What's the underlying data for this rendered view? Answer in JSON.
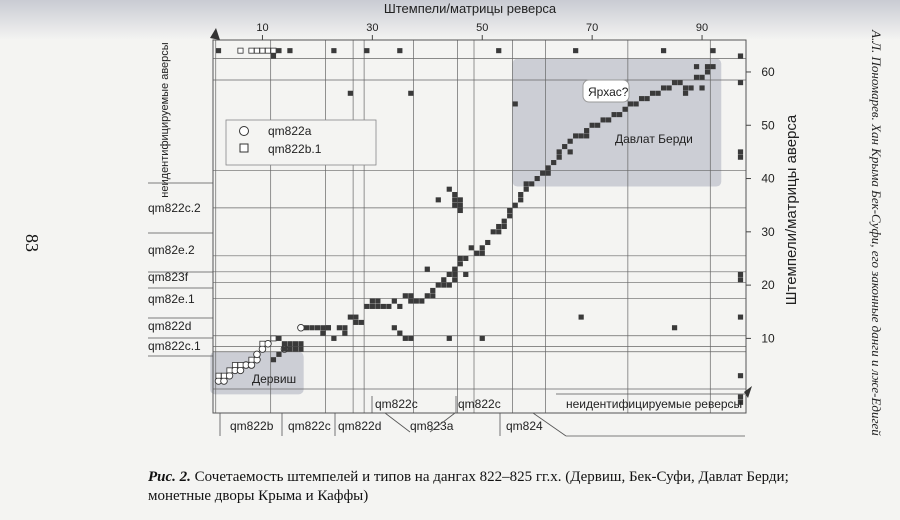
{
  "page_number": "83",
  "running_head": "А.Л. Пономарев. Хан Крыма Бек-Суфи, его законные данги и лже-Едигей",
  "caption": {
    "label": "Рис. 2.",
    "text": "Сочетаемость штемпелей и типов на дангах 822–825 гг.х. (Дервиш, Бек-Суфи, Давлат Берди; монетные дворы Крыма и Каффы)"
  },
  "chart_data": {
    "type": "scatter",
    "title": "Штемпели/матрицы реверса",
    "ylabel": "Штемпели/матрицы аверса",
    "x_ticks": [
      10,
      30,
      50,
      70,
      90
    ],
    "y_ticks": [
      10,
      20,
      30,
      40,
      50,
      60
    ],
    "xlim": [
      1,
      98
    ],
    "ylim": [
      -4,
      66
    ],
    "legend": {
      "placement": "top-left",
      "entries": [
        {
          "marker": "circle",
          "label": "qm822a"
        },
        {
          "marker": "square",
          "label": "qm822b.1"
        }
      ]
    },
    "regions": [
      {
        "label": "Дервиш",
        "x0": 0.5,
        "x1": 17.5,
        "y0": -0.5,
        "y1": 7.5
      },
      {
        "label": "Давлат Берди",
        "x0": 55.5,
        "x1": 93.5,
        "y0": 38.5,
        "y1": 62.5
      }
    ],
    "annotations": [
      {
        "label": "Ярхас?",
        "x": 71,
        "y": 51
      }
    ],
    "y_type_labels": [
      "неидентифицируемые аверсы",
      "qm822c.2",
      "qm82e.2",
      "qm823f",
      "qm82e.1",
      "qm822d",
      "qm822c.1"
    ],
    "x_type_labels_upper": [
      "qm822c",
      "qm822c"
    ],
    "x_type_labels_lower": [
      "qm822b",
      "qm822c",
      "qm822d",
      "qm823a",
      "qm824",
      "неидентифицируемые реверсы"
    ],
    "y_dividers": [
      0.5,
      7.5,
      8.5,
      10.5,
      17.5,
      20.5,
      22.5,
      25.5,
      34.5,
      41.5,
      58.5,
      62.5
    ],
    "x_dividers": [
      1.5,
      11.5,
      21.5,
      26.5,
      28.5,
      37.5,
      45.5,
      48.5,
      55.5,
      61.5,
      76.5,
      91.5
    ],
    "series": [
      {
        "name": "qm822a",
        "marker": "circle",
        "points": [
          [
            2,
            2
          ],
          [
            3,
            2
          ],
          [
            4,
            3
          ],
          [
            5,
            4
          ],
          [
            6,
            4
          ],
          [
            7,
            5
          ],
          [
            8,
            5
          ],
          [
            9,
            6
          ],
          [
            9,
            7
          ],
          [
            10,
            8
          ],
          [
            11,
            9
          ],
          [
            14,
            8
          ],
          [
            17,
            12
          ]
        ]
      },
      {
        "name": "qm822b.1",
        "marker": "open-square",
        "points": [
          [
            6,
            64
          ],
          [
            8,
            64
          ],
          [
            9,
            64
          ],
          [
            10,
            64
          ],
          [
            11,
            64
          ],
          [
            12,
            64
          ],
          [
            2,
            3
          ],
          [
            3,
            3
          ],
          [
            4,
            4
          ],
          [
            5,
            5
          ],
          [
            6,
            5
          ],
          [
            8,
            6
          ],
          [
            10,
            9
          ],
          [
            12,
            10
          ]
        ]
      },
      {
        "name": "",
        "marker": "filled-square",
        "points": [
          [
            2,
            64
          ],
          [
            12,
            63
          ],
          [
            13,
            64
          ],
          [
            15,
            64
          ],
          [
            23,
            64
          ],
          [
            29,
            64
          ],
          [
            35,
            64
          ],
          [
            53,
            64
          ],
          [
            67,
            64
          ],
          [
            83,
            64
          ],
          [
            92,
            64
          ],
          [
            97,
            63
          ],
          [
            97,
            58
          ],
          [
            12,
            6
          ],
          [
            13,
            7
          ],
          [
            13,
            10
          ],
          [
            14,
            9
          ],
          [
            15,
            9
          ],
          [
            16,
            9
          ],
          [
            17,
            9
          ],
          [
            14,
            8
          ],
          [
            15,
            8
          ],
          [
            16,
            8
          ],
          [
            17,
            8
          ],
          [
            18,
            12
          ],
          [
            19,
            12
          ],
          [
            20,
            12
          ],
          [
            21,
            11
          ],
          [
            21,
            12
          ],
          [
            22,
            12
          ],
          [
            23,
            10
          ],
          [
            24,
            12
          ],
          [
            25,
            12
          ],
          [
            25,
            11
          ],
          [
            26,
            14
          ],
          [
            27,
            14
          ],
          [
            27,
            13
          ],
          [
            28,
            13
          ],
          [
            29,
            16
          ],
          [
            30,
            17
          ],
          [
            30,
            16
          ],
          [
            31,
            17
          ],
          [
            31,
            16
          ],
          [
            32,
            16
          ],
          [
            33,
            16
          ],
          [
            34,
            17
          ],
          [
            35,
            16
          ],
          [
            36,
            18
          ],
          [
            37,
            18
          ],
          [
            37,
            17
          ],
          [
            38,
            17
          ],
          [
            39,
            17
          ],
          [
            40,
            18
          ],
          [
            41,
            18
          ],
          [
            41,
            19
          ],
          [
            42,
            20
          ],
          [
            43,
            20
          ],
          [
            43,
            21
          ],
          [
            44,
            22
          ],
          [
            44,
            20
          ],
          [
            45,
            21
          ],
          [
            45,
            23
          ],
          [
            45,
            22
          ],
          [
            46,
            24
          ],
          [
            46,
            25
          ],
          [
            47,
            25
          ],
          [
            47,
            22
          ],
          [
            48,
            27
          ],
          [
            49,
            26
          ],
          [
            50,
            26
          ],
          [
            50,
            27
          ],
          [
            51,
            28
          ],
          [
            52,
            30
          ],
          [
            53,
            30
          ],
          [
            53,
            31
          ],
          [
            54,
            31
          ],
          [
            54,
            32
          ],
          [
            55,
            33
          ],
          [
            55,
            34
          ],
          [
            56,
            35
          ],
          [
            57,
            36
          ],
          [
            57,
            37
          ],
          [
            58,
            38
          ],
          [
            58,
            39
          ],
          [
            59,
            39
          ],
          [
            60,
            40
          ],
          [
            61,
            41
          ],
          [
            62,
            42
          ],
          [
            62,
            41
          ],
          [
            63,
            43
          ],
          [
            64,
            44
          ],
          [
            64,
            45
          ],
          [
            65,
            46
          ],
          [
            66,
            45
          ],
          [
            66,
            47
          ],
          [
            67,
            48
          ],
          [
            68,
            48
          ],
          [
            69,
            48
          ],
          [
            69,
            49
          ],
          [
            70,
            50
          ],
          [
            71,
            50
          ],
          [
            72,
            51
          ],
          [
            73,
            51
          ],
          [
            74,
            52
          ],
          [
            75,
            52
          ],
          [
            76,
            53
          ],
          [
            77,
            54
          ],
          [
            78,
            54
          ],
          [
            79,
            55
          ],
          [
            80,
            55
          ],
          [
            81,
            56
          ],
          [
            82,
            56
          ],
          [
            83,
            57
          ],
          [
            84,
            57
          ],
          [
            85,
            58
          ],
          [
            86,
            58
          ],
          [
            87,
            57
          ],
          [
            88,
            57
          ],
          [
            89,
            59
          ],
          [
            90,
            59
          ],
          [
            91,
            60
          ],
          [
            91,
            61
          ],
          [
            92,
            61
          ],
          [
            89,
            61
          ],
          [
            87,
            56
          ],
          [
            90,
            57
          ],
          [
            45,
            36
          ],
          [
            46,
            36
          ],
          [
            45,
            35
          ],
          [
            46,
            35
          ],
          [
            46,
            34
          ],
          [
            42,
            36
          ],
          [
            40,
            23
          ],
          [
            44,
            38
          ],
          [
            45,
            37
          ],
          [
            26,
            56
          ],
          [
            37,
            56
          ],
          [
            22,
            12
          ],
          [
            34,
            12
          ],
          [
            35,
            11
          ],
          [
            36,
            10
          ],
          [
            37,
            10
          ],
          [
            44,
            10
          ],
          [
            50,
            10
          ],
          [
            56,
            54
          ],
          [
            68,
            14
          ],
          [
            85,
            12
          ],
          [
            97,
            14
          ],
          [
            97,
            21
          ],
          [
            97,
            22
          ],
          [
            97,
            44
          ],
          [
            97,
            45
          ],
          [
            97,
            -1
          ],
          [
            97,
            -2
          ],
          [
            97,
            3
          ]
        ]
      }
    ]
  }
}
